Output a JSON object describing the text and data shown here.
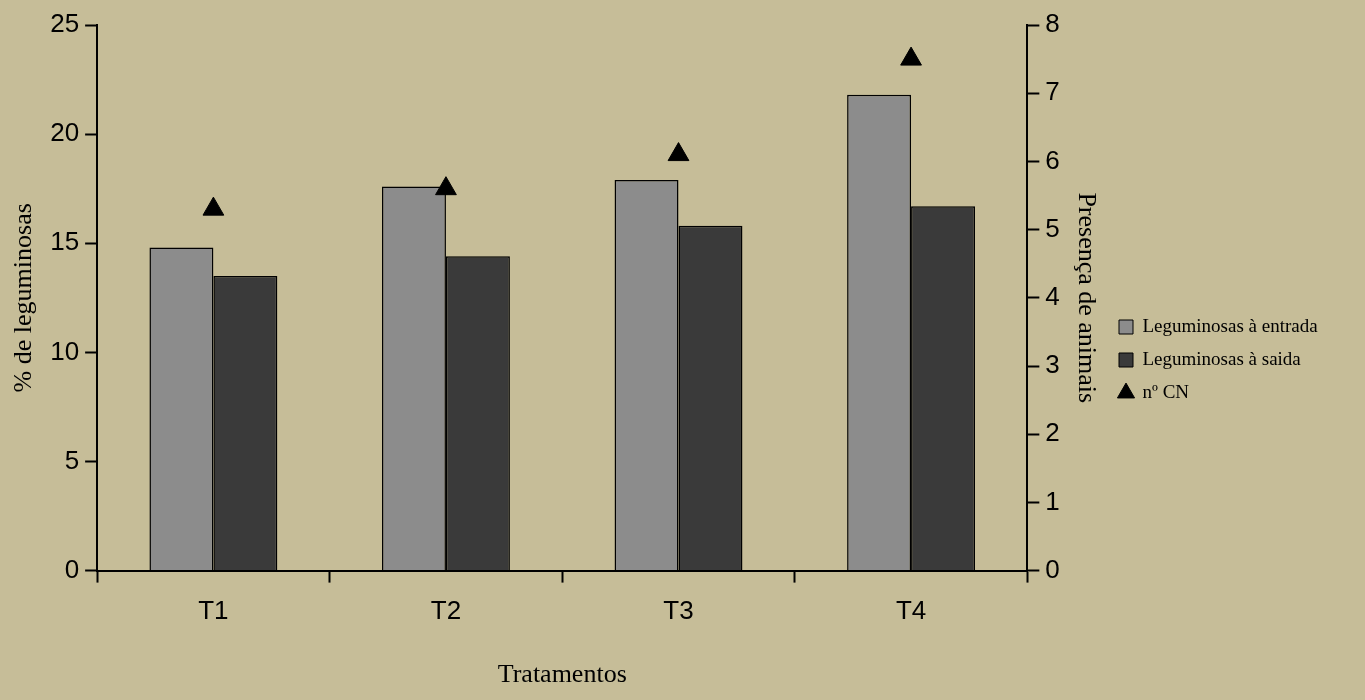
{
  "chart_data": {
    "type": "bar",
    "xlabel": "Tratamentos",
    "ylabel": "% de leguminosas",
    "y2label": "Presença de animais",
    "categories": [
      "T1",
      "T2",
      "T3",
      "T4"
    ],
    "series": [
      {
        "name": "Leguminosas à entrada",
        "color": "#8c8c8c",
        "values": [
          14.8,
          17.6,
          17.9,
          21.8
        ]
      },
      {
        "name": "Leguminosas à saida",
        "color": "#3a3a3a",
        "values": [
          13.5,
          14.4,
          15.8,
          16.7
        ]
      },
      {
        "name": "nº CN",
        "type": "scatter",
        "axis": "y2",
        "color": "#000000",
        "marker": "triangle",
        "x": [
          "T1",
          "T2",
          "T3",
          "T4"
        ],
        "values": [
          5.3,
          5.6,
          6.1,
          7.5
        ]
      }
    ],
    "ylim": [
      0,
      25
    ],
    "yticks": [
      0,
      5,
      10,
      15,
      20,
      25
    ],
    "y2lim": [
      0,
      8
    ],
    "y2ticks": [
      0,
      1,
      2,
      3,
      4,
      5,
      6,
      7,
      8
    ],
    "grid": false,
    "legend": "right"
  }
}
